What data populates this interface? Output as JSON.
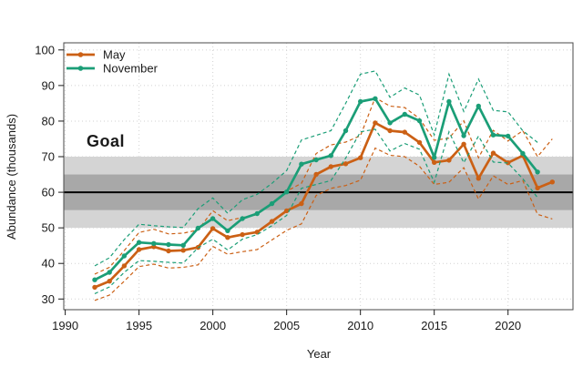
{
  "chart_data": {
    "type": "line",
    "title": "",
    "xlabel": "Year",
    "ylabel": "Abundance (thousands)",
    "xlim": [
      1989.9,
      2024.4
    ],
    "ylim": [
      27,
      102
    ],
    "x_ticks": [
      1990,
      1995,
      2000,
      2005,
      2010,
      2015,
      2020
    ],
    "y_ticks": [
      30,
      40,
      50,
      60,
      70,
      80,
      90,
      100
    ],
    "grid": "dotted",
    "legend_position": "top-left",
    "goal": {
      "label": "Goal",
      "target_line": 60,
      "inner_band": [
        55,
        65
      ],
      "outer_band": [
        50,
        70
      ],
      "label_color": "#b0b0b0",
      "inner_band_color": "#a8a8a8",
      "outer_band_color": "#d4d4d4",
      "target_line_color": "#000000"
    },
    "series": [
      {
        "name": "May",
        "color": "#CB6015",
        "x": [
          1992,
          1993,
          1994,
          1995,
          1996,
          1997,
          1998,
          1999,
          2000,
          2001,
          2002,
          2003,
          2004,
          2005,
          2006,
          2007,
          2008,
          2009,
          2010,
          2011,
          2012,
          2013,
          2014,
          2015,
          2016,
          2017,
          2018,
          2019,
          2020,
          2021,
          2022,
          2023
        ],
        "values": [
          33.3,
          35.0,
          39.3,
          43.9,
          44.7,
          43.5,
          43.7,
          44.5,
          49.8,
          47.3,
          48.1,
          48.8,
          51.8,
          54.8,
          56.8,
          65.0,
          67.2,
          68.0,
          69.7,
          79.5,
          77.3,
          76.9,
          74.0,
          68.4,
          69.0,
          73.5,
          63.9,
          71.0,
          68.3,
          70.3,
          61.2,
          62.9
        ],
        "upper": [
          37.0,
          38.9,
          43.6,
          48.7,
          49.6,
          48.3,
          48.5,
          49.4,
          54.8,
          52.0,
          52.9,
          53.7,
          57.0,
          60.3,
          62.5,
          70.9,
          73.3,
          74.1,
          75.9,
          86.6,
          84.2,
          83.8,
          80.7,
          74.6,
          75.2,
          80.1,
          69.7,
          77.4,
          74.4,
          77.3,
          70.0,
          75.0
        ],
        "lower": [
          29.6,
          31.1,
          35.0,
          39.1,
          39.8,
          38.7,
          38.9,
          39.6,
          44.8,
          42.6,
          43.3,
          43.9,
          46.6,
          49.3,
          51.1,
          59.1,
          61.1,
          61.9,
          63.4,
          72.4,
          70.4,
          70.0,
          67.3,
          62.2,
          62.8,
          66.9,
          58.1,
          64.6,
          62.2,
          63.3,
          53.8,
          52.5
        ]
      },
      {
        "name": "November",
        "color": "#1B9E77",
        "x": [
          1992,
          1993,
          1994,
          1995,
          1996,
          1997,
          1998,
          1999,
          2000,
          2001,
          2002,
          2003,
          2004,
          2005,
          2006,
          2007,
          2008,
          2009,
          2010,
          2011,
          2012,
          2013,
          2014,
          2015,
          2016,
          2017,
          2018,
          2019,
          2020,
          2021,
          2022
        ],
        "values": [
          35.4,
          37.5,
          42.1,
          45.9,
          45.6,
          45.3,
          45.1,
          49.9,
          52.6,
          49.2,
          52.6,
          54.0,
          56.8,
          60.1,
          67.9,
          69.1,
          70.3,
          77.3,
          85.5,
          86.3,
          79.5,
          81.9,
          80.1,
          69.8,
          85.5,
          75.9,
          84.2,
          76.1,
          75.8,
          70.9,
          65.7
        ],
        "upper": [
          39.3,
          41.6,
          46.7,
          51.0,
          50.6,
          50.3,
          50.1,
          55.4,
          58.4,
          54.1,
          57.9,
          59.4,
          62.5,
          66.1,
          74.7,
          76.0,
          77.3,
          85.0,
          93.2,
          94.1,
          86.7,
          89.3,
          87.3,
          76.1,
          93.2,
          82.7,
          91.8,
          83.0,
          82.6,
          77.3,
          74.0
        ],
        "lower": [
          31.5,
          33.4,
          37.5,
          40.8,
          40.6,
          40.3,
          40.1,
          44.4,
          46.8,
          43.8,
          46.8,
          48.1,
          50.6,
          53.5,
          61.1,
          62.2,
          63.3,
          69.6,
          77.0,
          77.7,
          71.6,
          73.7,
          72.1,
          62.8,
          77.0,
          68.3,
          75.8,
          68.5,
          68.2,
          63.8,
          58.5
        ]
      }
    ],
    "style": {
      "grid_color": "#d2d2d2",
      "border_color": "#4a4a4a",
      "tick_color": "#1a1a1a",
      "ci_dash": "4 3",
      "marker_radius": 2.7,
      "line_width": 2.7
    }
  }
}
